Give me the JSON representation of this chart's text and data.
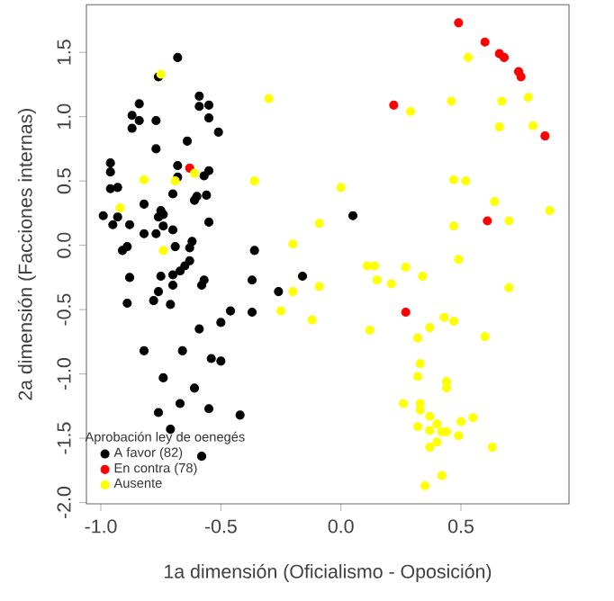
{
  "chart_data": {
    "type": "scatter",
    "xlabel": "1a dimensión (Oficialismo - Oposición)",
    "ylabel": "2a dimensión (Facciones internas)",
    "legend_title": "Aprobación ley de oenegés",
    "legend": "bottom left",
    "marker": "circle",
    "xlim": [
      -1.06,
      0.95
    ],
    "ylim": [
      -2.01,
      1.87
    ],
    "xticks": [
      {
        "value": -1,
        "label": "-1.0"
      },
      {
        "value": -0.5,
        "label": "-0.5"
      },
      {
        "value": 0,
        "label": "0.0"
      },
      {
        "value": 0.5,
        "label": "0.5"
      }
    ],
    "yticks": [
      {
        "value": -2,
        "label": "-2.0"
      },
      {
        "value": -1.5,
        "label": "-1.5"
      },
      {
        "value": -1,
        "label": "-1.0"
      },
      {
        "value": -0.5,
        "label": "-0.5"
      },
      {
        "value": 0,
        "label": "0.0"
      },
      {
        "value": 0.5,
        "label": "0.5"
      },
      {
        "value": 1,
        "label": "1.0"
      },
      {
        "value": 1.5,
        "label": "1.5"
      }
    ],
    "series": [
      {
        "name": "A favor (82)",
        "color": "#000000",
        "x": [
          -0.68,
          -0.76,
          -0.59,
          -0.84,
          -0.59,
          -0.55,
          -0.87,
          -0.84,
          -0.77,
          -0.55,
          -0.87,
          -0.51,
          -0.64,
          -0.77,
          -0.96,
          -0.68,
          -0.96,
          -0.96,
          -0.93,
          -0.68,
          -0.55,
          -0.57,
          -0.7,
          -0.6,
          -0.61,
          -0.56,
          -0.82,
          -0.99,
          -0.93,
          -0.95,
          -0.75,
          -0.74,
          -0.76,
          -0.74,
          -0.7,
          -0.88,
          -0.55,
          -0.82,
          -0.77,
          -0.89,
          -0.91,
          -0.69,
          -0.62,
          -0.63,
          -0.36,
          -0.63,
          -0.65,
          -0.67,
          -0.7,
          -0.75,
          -0.88,
          -0.57,
          -0.37,
          -0.16,
          0.05,
          -0.76,
          -0.7,
          -0.58,
          -0.89,
          -0.78,
          -0.71,
          -0.46,
          -0.37,
          -0.26,
          -0.59,
          -0.5,
          -0.82,
          -0.66,
          -0.54,
          -0.5,
          -0.74,
          -0.61,
          -0.67,
          -0.76,
          -0.55,
          -0.42,
          -0.71,
          -0.58
        ],
        "values": [
          1.46,
          1.31,
          1.16,
          1.1,
          1.08,
          1.09,
          1.01,
          0.97,
          0.97,
          0.99,
          0.91,
          0.88,
          0.81,
          0.75,
          0.64,
          0.62,
          0.57,
          0.44,
          0.45,
          0.53,
          0.58,
          0.54,
          0.4,
          0.38,
          0.35,
          0.39,
          0.32,
          0.23,
          0.22,
          0.16,
          0.27,
          0.24,
          0.22,
          0.15,
          0.12,
          0.16,
          0.18,
          0.09,
          0.09,
          -0.01,
          -0.04,
          -0.01,
          0.03,
          -0.02,
          -0.04,
          -0.12,
          -0.16,
          -0.2,
          -0.23,
          -0.24,
          -0.25,
          -0.27,
          -0.27,
          -0.24,
          0.23,
          -0.36,
          -0.31,
          -0.31,
          -0.45,
          -0.43,
          -0.46,
          -0.51,
          -0.52,
          -0.36,
          -0.65,
          -0.6,
          -0.82,
          -0.82,
          -0.88,
          -0.9,
          -1.03,
          -1.11,
          -1.23,
          -1.3,
          -1.27,
          -1.32,
          -1.43,
          -1.64
        ]
      },
      {
        "name": "En contra (78)",
        "color": "#ff0000",
        "x": [
          0.49,
          0.6,
          0.66,
          0.68,
          0.74,
          0.75,
          0.22,
          0.85,
          0.61,
          -0.63,
          0.27
        ],
        "values": [
          1.73,
          1.58,
          1.49,
          1.46,
          1.35,
          1.31,
          1.09,
          0.85,
          0.19,
          0.6,
          -0.52
        ]
      },
      {
        "name": "Ausente",
        "color": "#ffff00",
        "x": [
          -0.75,
          -0.3,
          -0.82,
          -0.69,
          -0.61,
          -0.36,
          -0.92,
          -0.09,
          -0.2,
          -0.74,
          -0.09,
          0.53,
          0.46,
          0.29,
          0.67,
          0.78,
          0.66,
          0.8,
          0.47,
          0.52,
          0.0,
          0.64,
          0.87,
          0.7,
          0.47,
          0.49,
          0.11,
          0.14,
          0.27,
          0.15,
          0.21,
          0.34,
          0.7,
          -0.2,
          -0.12,
          0.12,
          0.43,
          0.47,
          0.37,
          0.32,
          0.6,
          0.33,
          0.32,
          0.44,
          0.44,
          0.26,
          0.33,
          0.33,
          0.37,
          0.4,
          0.5,
          0.55,
          0.32,
          0.37,
          0.42,
          0.44,
          0.49,
          0.4,
          0.37,
          0.63,
          0.42,
          0.35,
          -0.25
        ],
        "values": [
          1.33,
          1.14,
          0.51,
          0.5,
          0.56,
          0.5,
          0.29,
          0.17,
          0.01,
          -0.04,
          -0.32,
          1.46,
          1.12,
          1.04,
          1.12,
          1.15,
          0.92,
          0.93,
          0.51,
          0.5,
          0.45,
          0.34,
          0.27,
          0.19,
          0.15,
          -0.11,
          -0.16,
          -0.16,
          -0.17,
          -0.27,
          -0.3,
          -0.24,
          -0.33,
          -0.36,
          -0.58,
          -0.66,
          -0.56,
          -0.59,
          -0.64,
          -0.72,
          -0.71,
          -0.92,
          -1.02,
          -1.06,
          -1.11,
          -1.23,
          -1.23,
          -1.28,
          -1.33,
          -1.39,
          -1.37,
          -1.34,
          -1.41,
          -1.44,
          -1.45,
          -1.45,
          -1.48,
          -1.53,
          -1.57,
          -1.57,
          -1.79,
          -1.87,
          -0.51
        ]
      }
    ]
  }
}
